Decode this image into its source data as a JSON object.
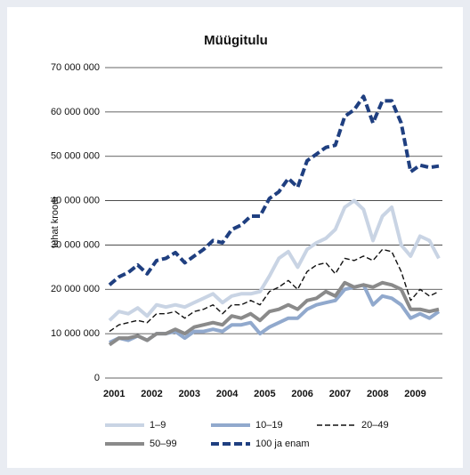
{
  "chart_data": {
    "type": "line",
    "title": "Müügitulu",
    "y_label": "tuhat krooni",
    "categories": [
      "2001",
      null,
      null,
      null,
      "2002",
      null,
      null,
      null,
      "2003",
      null,
      null,
      null,
      "2004",
      null,
      null,
      null,
      "2005",
      null,
      null,
      null,
      "2006",
      null,
      null,
      null,
      "2007",
      null,
      null,
      null,
      "2008",
      null,
      null,
      null,
      "2009",
      null,
      null,
      null
    ],
    "ylim": [
      0,
      70000000
    ],
    "yticks": [
      0,
      {
        "value": 10000000,
        "label": "10 000 000"
      },
      {
        "value": 20000000,
        "label": "20 000 000"
      },
      {
        "value": 30000000,
        "label": "30 000 000"
      },
      {
        "value": 40000000,
        "label": "40 000 000"
      },
      {
        "value": 50000000,
        "label": "50 000 000"
      },
      {
        "value": 60000000,
        "label": "60 000 000"
      },
      {
        "value": 70000000,
        "label": "70 000 000"
      }
    ],
    "grid": true,
    "series": [
      {
        "name": "1–9",
        "color": "#c9d4e4",
        "line_style": "thick",
        "values": [
          13000000,
          15000000,
          14500000,
          15800000,
          14000000,
          16500000,
          16000000,
          16500000,
          16000000,
          17000000,
          18000000,
          19000000,
          17000000,
          18500000,
          19000000,
          19000000,
          19500000,
          23000000,
          27000000,
          28500000,
          25000000,
          29000000,
          30500000,
          31500000,
          33500000,
          38500000,
          40000000,
          38000000,
          31000000,
          36500000,
          38500000,
          30000000,
          27500000,
          32000000,
          31000000,
          27000000
        ]
      },
      {
        "name": "10–19",
        "color": "#91a9cd",
        "line_style": "thick",
        "values": [
          8000000,
          9000000,
          8500000,
          9500000,
          8500000,
          10000000,
          10000000,
          10500000,
          9000000,
          10500000,
          10500000,
          11000000,
          10500000,
          12000000,
          12000000,
          12500000,
          10000000,
          11500000,
          12500000,
          13500000,
          13500000,
          15500000,
          16500000,
          17000000,
          17500000,
          20000000,
          20500000,
          21000000,
          16500000,
          18500000,
          18000000,
          16500000,
          13500000,
          14500000,
          13500000,
          15000000
        ]
      },
      {
        "name": "20–49",
        "color": "#111111",
        "line_style": "thin-dashed",
        "values": [
          10500000,
          12000000,
          12500000,
          13000000,
          12500000,
          14500000,
          14500000,
          15000000,
          13500000,
          15000000,
          15500000,
          16500000,
          14500000,
          16500000,
          16500000,
          17500000,
          16500000,
          19500000,
          20500000,
          22000000,
          20000000,
          24000000,
          25500000,
          26000000,
          23500000,
          27000000,
          26500000,
          27500000,
          26500000,
          29000000,
          28500000,
          24000000,
          17500000,
          20000000,
          18500000,
          19500000
        ]
      },
      {
        "name": "50–99",
        "color": "#8a8a8a",
        "line_style": "thick",
        "values": [
          7500000,
          9000000,
          9000000,
          9500000,
          8500000,
          10000000,
          10000000,
          11000000,
          10000000,
          11500000,
          12000000,
          12500000,
          12000000,
          14000000,
          13500000,
          14500000,
          13000000,
          15000000,
          15500000,
          16500000,
          15500000,
          17500000,
          18000000,
          19500000,
          18500000,
          21500000,
          20500000,
          21000000,
          20500000,
          21500000,
          21000000,
          20000000,
          15500000,
          15500000,
          15000000,
          15500000
        ]
      },
      {
        "name": "100 ja enam",
        "color": "#1f3f80",
        "line_style": "thick-dashed",
        "values": [
          21000000,
          22800000,
          23800000,
          25500000,
          23500000,
          26500000,
          27000000,
          28300000,
          26000000,
          27500000,
          29000000,
          31000000,
          30500000,
          33500000,
          34500000,
          36500000,
          36500000,
          40500000,
          42000000,
          45000000,
          43000000,
          49000000,
          50500000,
          52000000,
          52500000,
          59000000,
          60500000,
          63500000,
          57500000,
          62500000,
          62500000,
          57500000,
          46500000,
          48000000,
          47500000,
          47800000
        ]
      }
    ]
  }
}
